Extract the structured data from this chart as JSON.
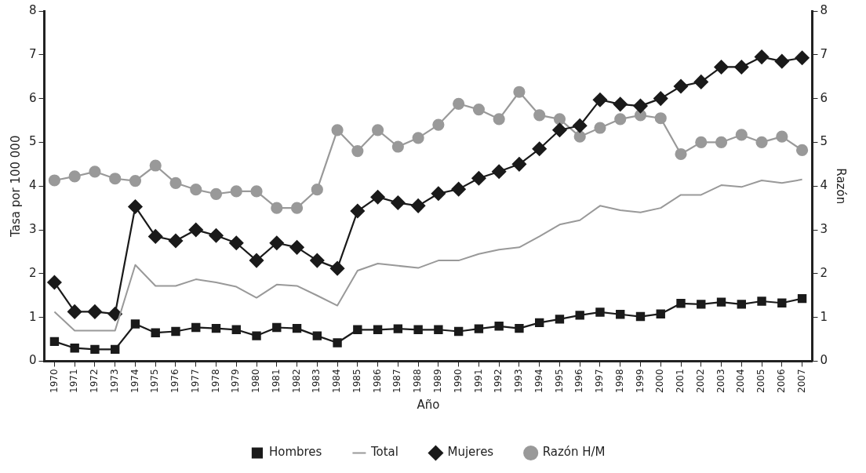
{
  "chart_data": {
    "type": "line",
    "xlabel": "Año",
    "ylabel": "Tasa por 100 000",
    "y2label": "Razón",
    "categories": [
      "1970",
      "1971",
      "1972",
      "1973",
      "1974",
      "1975",
      "1976",
      "1977",
      "1978",
      "1979",
      "1980",
      "1981",
      "1982",
      "1983",
      "1984",
      "1985",
      "1986",
      "1987",
      "1988",
      "1989",
      "1990",
      "1991",
      "1992",
      "1993",
      "1994",
      "1995",
      "1996",
      "1997",
      "1998",
      "1999",
      "2000",
      "2001",
      "2002",
      "2003",
      "2004",
      "2005",
      "2006",
      "2007"
    ],
    "series": [
      {
        "name": "Hombres",
        "color": "#1a1a1a",
        "marker": "square",
        "values": [
          0.45,
          0.3,
          0.27,
          0.27,
          0.85,
          0.65,
          0.68,
          0.77,
          0.75,
          0.72,
          0.58,
          0.77,
          0.75,
          0.58,
          0.42,
          0.72,
          0.72,
          0.74,
          0.72,
          0.72,
          0.68,
          0.74,
          0.8,
          0.75,
          0.88,
          0.96,
          1.05,
          1.12,
          1.07,
          1.02,
          1.08,
          1.32,
          1.3,
          1.35,
          1.3,
          1.37,
          1.33,
          1.43
        ]
      },
      {
        "name": "Total",
        "color": "#999999",
        "marker": "none",
        "values": [
          1.13,
          0.7,
          0.7,
          0.7,
          2.2,
          1.72,
          1.72,
          1.87,
          1.8,
          1.7,
          1.45,
          1.75,
          1.72,
          1.5,
          1.27,
          2.07,
          2.23,
          2.18,
          2.13,
          2.3,
          2.3,
          2.45,
          2.55,
          2.6,
          2.85,
          3.12,
          3.22,
          3.55,
          3.45,
          3.4,
          3.5,
          3.8,
          3.8,
          4.02,
          3.98,
          4.13,
          4.07,
          4.15
        ]
      },
      {
        "name": "Mujeres",
        "color": "#1a1a1a",
        "marker": "diamond",
        "values": [
          1.8,
          1.13,
          1.13,
          1.08,
          3.53,
          2.85,
          2.75,
          3.0,
          2.87,
          2.7,
          2.3,
          2.7,
          2.6,
          2.3,
          2.12,
          3.43,
          3.75,
          3.62,
          3.55,
          3.83,
          3.93,
          4.18,
          4.33,
          4.5,
          4.85,
          5.28,
          5.38,
          5.97,
          5.87,
          5.83,
          6.0,
          6.28,
          6.38,
          6.72,
          6.72,
          6.95,
          6.85,
          6.93
        ]
      },
      {
        "name": "Razón H/M",
        "color": "#999999",
        "marker": "circle",
        "axis": "y2",
        "values": [
          4.13,
          4.22,
          4.33,
          4.17,
          4.12,
          4.47,
          4.07,
          3.92,
          3.82,
          3.88,
          3.88,
          3.5,
          3.5,
          3.92,
          5.28,
          4.8,
          5.28,
          4.9,
          5.1,
          5.4,
          5.88,
          5.75,
          5.53,
          6.15,
          5.62,
          5.53,
          5.13,
          5.33,
          5.53,
          5.62,
          5.55,
          4.73,
          5.0,
          5.0,
          5.17,
          5.0,
          5.13,
          4.82
        ]
      }
    ],
    "ylim": [
      0,
      8
    ],
    "yticks": [
      0,
      1,
      2,
      3,
      4,
      5,
      6,
      7,
      8
    ],
    "y2lim": [
      0,
      8
    ],
    "y2ticks": [
      0,
      1,
      2,
      3,
      4,
      5,
      6,
      7,
      8
    ],
    "grid": false,
    "legend": "bottom",
    "line_style": "solid"
  }
}
